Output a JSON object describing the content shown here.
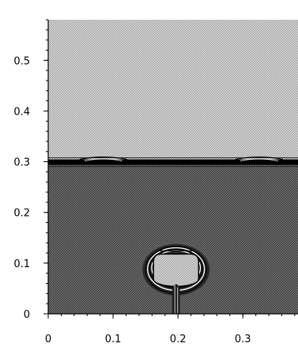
{
  "chart_data": {
    "type": "heatmap",
    "title": "",
    "xlabel": "",
    "ylabel": "",
    "xlim": [
      0,
      0.385
    ],
    "ylim": [
      0,
      0.58
    ],
    "x_ticks": [
      {
        "value": 0.0,
        "label": "0"
      },
      {
        "value": 0.1,
        "label": "0.1"
      },
      {
        "value": 0.2,
        "label": "0.2"
      },
      {
        "value": 0.3,
        "label": "0.3"
      }
    ],
    "y_ticks": [
      {
        "value": 0.0,
        "label": "0"
      },
      {
        "value": 0.1,
        "label": "0.1"
      },
      {
        "value": 0.2,
        "label": "0.2"
      },
      {
        "value": 0.3,
        "label": "0.3"
      },
      {
        "value": 0.4,
        "label": "0.4"
      },
      {
        "value": 0.5,
        "label": "0.5"
      }
    ],
    "minor_tick_step": 0.02,
    "grid": false,
    "legend": "none",
    "colors": {
      "upper_fluid": "#c8c8c8",
      "lower_fluid": "#5a5a5a",
      "interface": "#000000",
      "bubble": "#c8c8c8",
      "background": "#ffffff"
    },
    "regions": [
      {
        "name": "upper fluid",
        "y_range": [
          0.305,
          0.58
        ]
      },
      {
        "name": "lower fluid",
        "y_range": [
          0,
          0.295
        ]
      }
    ],
    "interface": {
      "y": 0.3,
      "thickness": 0.008
    },
    "bubble": {
      "center": [
        0.197,
        0.087
      ],
      "radius_x": 0.047,
      "radius_y": 0.046,
      "rings": 4,
      "inner_top": 0.118
    },
    "jet": {
      "x": 0.197,
      "y_range": [
        0,
        0.06
      ],
      "half_width": 0.006
    }
  }
}
